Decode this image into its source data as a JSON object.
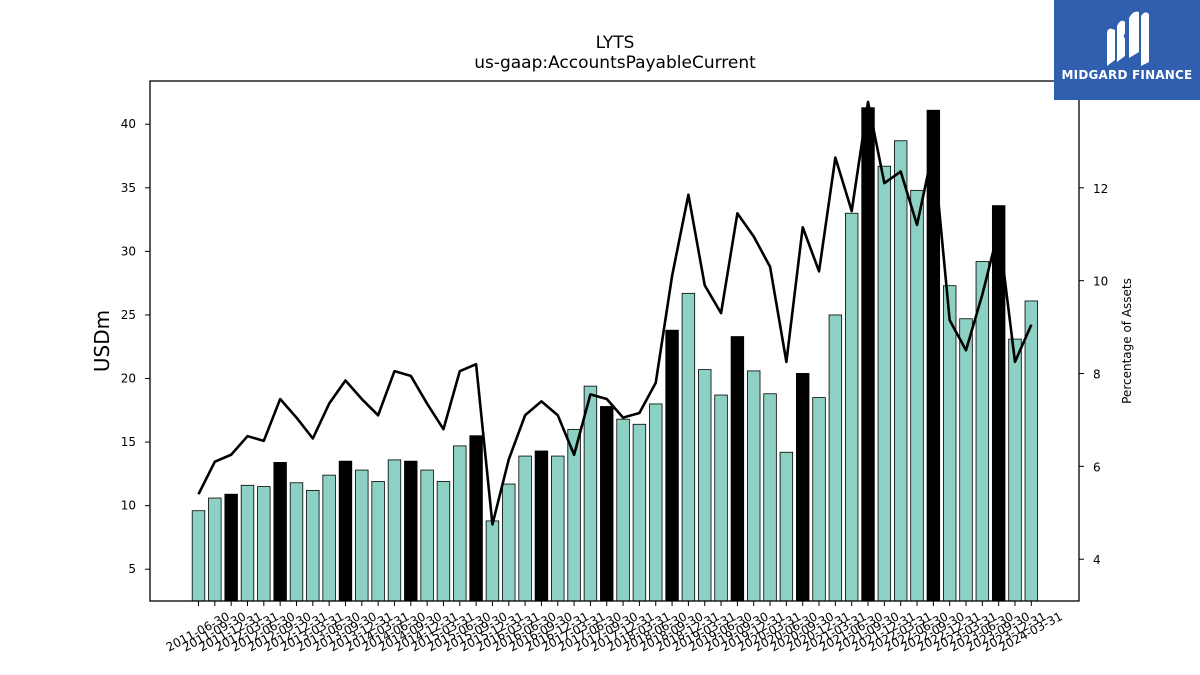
{
  "logo": {
    "text": "MIDGARD FINANCE",
    "icon": "midgard-logo-icon",
    "bg": "#2f5fae"
  },
  "colors": {
    "bar": "#8dd1c4",
    "bar_q4": "#000000",
    "line": "#000000"
  },
  "chart_data": {
    "type": "bar",
    "title": "LYTS",
    "subtitle": "us-gaap:AccountsPayableCurrent",
    "ylabel": "USDm",
    "y2label": "Percentage of Assets",
    "ylim": [
      2.5,
      43.4
    ],
    "y2lim": [
      3.1,
      14.3
    ],
    "yticks": [
      5,
      10,
      15,
      20,
      25,
      30,
      35,
      40
    ],
    "y2ticks": [
      4,
      6,
      8,
      10,
      12
    ],
    "xtick_labels": [
      "2011-06-30",
      "2011-09-30",
      "2011-12-31",
      "2012-03-31",
      "2012-06-30",
      "2012-09-30",
      "2012-12-31",
      "2013-03-31",
      "2013-06-30",
      "2013-09-30",
      "2013-12-31",
      "2014-03-31",
      "2014-06-30",
      "2014-09-30",
      "2014-12-31",
      "2015-03-31",
      "2015-06-30",
      "2015-09-30",
      "2015-12-31",
      "2016-03-31",
      "2016-06-30",
      "2016-09-30",
      "2016-12-31",
      "2017-03-31",
      "2017-06-30",
      "2017-09-30",
      "2017-12-31",
      "2018-03-31",
      "2018-06-30",
      "2018-09-30",
      "2018-12-31",
      "2019-03-31",
      "2019-06-30",
      "2019-09-30",
      "2019-12-31",
      "2020-03-31",
      "2020-06-30",
      "2020-09-30",
      "2020-12-31",
      "2021-03-31",
      "2021-06-30",
      "2021-09-30",
      "2021-12-31",
      "2022-03-31",
      "2022-06-30",
      "2022-09-30",
      "2022-12-31",
      "2023-03-31",
      "2023-06-30",
      "2023-09-30",
      "2023-12-31",
      "2024-03-31"
    ],
    "categories": [
      "2011-06-30",
      "2011-09-30",
      "2011-12-31",
      "2012-03-31",
      "2012-06-30",
      "2012-09-30",
      "2012-12-31",
      "2013-03-31",
      "2013-06-30",
      "2013-09-30",
      "2013-12-31",
      "2014-03-31",
      "2014-06-30",
      "2014-09-30",
      "2014-12-31",
      "2015-03-31",
      "2015-06-30",
      "2015-09-30",
      "2015-12-31",
      "2016-03-31",
      "2016-06-30",
      "2016-09-30",
      "2016-12-31",
      "2017-03-31",
      "2017-06-30",
      "2017-09-30",
      "2017-12-31",
      "2018-03-31",
      "2018-06-30",
      "2018-09-30",
      "2018-12-31",
      "2019-03-31",
      "2019-06-30",
      "2019-09-30",
      "2019-12-31",
      "2020-03-31",
      "2020-06-30",
      "2020-09-30",
      "2020-12-31",
      "2021-03-31",
      "2021-06-30",
      "2021-09-30",
      "2021-12-31",
      "2022-03-31",
      "2022-06-30",
      "2022-09-30",
      "2022-12-31",
      "2023-03-31",
      "2023-06-30",
      "2023-09-30",
      "2023-12-31",
      "2024-03-31"
    ],
    "values": [
      9.6,
      10.6,
      10.9,
      11.6,
      11.5,
      13.4,
      11.8,
      11.2,
      12.4,
      13.5,
      12.8,
      11.9,
      13.6,
      13.5,
      12.8,
      11.9,
      14.7,
      15.5,
      8.8,
      11.7,
      13.9,
      14.3,
      13.9,
      16.0,
      19.4,
      17.8,
      16.8,
      16.4,
      18.0,
      23.8,
      26.7,
      20.7,
      18.7,
      23.3,
      20.6,
      18.8,
      14.2,
      20.4,
      18.5,
      25.0,
      33.0,
      41.3,
      36.7,
      38.7,
      34.8,
      41.1,
      27.3,
      24.7,
      29.2,
      33.6,
      23.1,
      26.1
    ],
    "line_values": [
      5.4,
      6.1,
      6.25,
      6.65,
      6.55,
      7.45,
      7.05,
      6.6,
      7.35,
      7.85,
      7.45,
      7.1,
      8.05,
      7.95,
      7.35,
      6.8,
      8.05,
      8.2,
      4.75,
      6.15,
      7.1,
      7.4,
      7.1,
      6.25,
      7.55,
      7.45,
      7.05,
      7.15,
      7.8,
      10.1,
      11.85,
      9.9,
      9.3,
      11.45,
      10.95,
      10.3,
      8.25,
      11.15,
      10.2,
      12.65,
      11.5,
      13.85,
      12.1,
      12.35,
      11.2,
      12.85,
      9.15,
      8.5,
      9.7,
      11.1,
      8.25,
      9.05
    ],
    "highlight_indices": [
      2,
      5,
      9,
      13,
      17,
      21,
      25,
      29,
      33,
      37,
      41,
      45,
      49
    ],
    "grid": false
  }
}
